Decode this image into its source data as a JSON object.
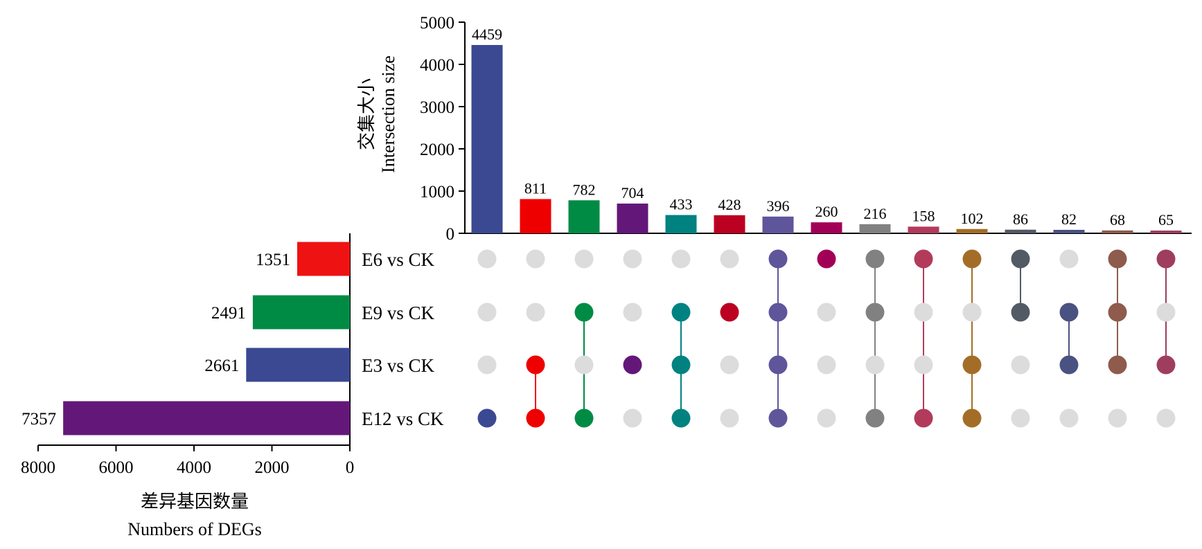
{
  "chart_data": {
    "type": "upset",
    "sets": [
      {
        "name": "E6 vs CK",
        "size": 1351,
        "color": "#ee1212"
      },
      {
        "name": "E9 vs CK",
        "size": 2491,
        "color": "#008b45"
      },
      {
        "name": "E3 vs CK",
        "size": 2661,
        "color": "#3b4992"
      },
      {
        "name": "E12 vs CK",
        "size": 7357,
        "color": "#631879"
      }
    ],
    "intersections": [
      {
        "size": 4459,
        "sets": [
          "E12 vs CK"
        ],
        "color": "#3b4992"
      },
      {
        "size": 811,
        "sets": [
          "E3 vs CK",
          "E12 vs CK"
        ],
        "color": "#ee0000"
      },
      {
        "size": 782,
        "sets": [
          "E9 vs CK",
          "E12 vs CK"
        ],
        "color": "#008b45"
      },
      {
        "size": 704,
        "sets": [
          "E3 vs CK"
        ],
        "color": "#631879"
      },
      {
        "size": 433,
        "sets": [
          "E9 vs CK",
          "E3 vs CK",
          "E12 vs CK"
        ],
        "color": "#008280"
      },
      {
        "size": 428,
        "sets": [
          "E9 vs CK"
        ],
        "color": "#bb0021"
      },
      {
        "size": 396,
        "sets": [
          "E6 vs CK",
          "E9 vs CK",
          "E3 vs CK",
          "E12 vs CK"
        ],
        "color": "#5f559b"
      },
      {
        "size": 260,
        "sets": [
          "E6 vs CK"
        ],
        "color": "#a20056"
      },
      {
        "size": 216,
        "sets": [
          "E6 vs CK",
          "E9 vs CK",
          "E12 vs CK"
        ],
        "color": "#808180"
      },
      {
        "size": 158,
        "sets": [
          "E6 vs CK",
          "E12 vs CK"
        ],
        "color": "#b23b5c"
      },
      {
        "size": 102,
        "sets": [
          "E6 vs CK",
          "E3 vs CK",
          "E12 vs CK"
        ],
        "color": "#a46d27"
      },
      {
        "size": 86,
        "sets": [
          "E6 vs CK",
          "E9 vs CK"
        ],
        "color": "#525a66"
      },
      {
        "size": 82,
        "sets": [
          "E9 vs CK",
          "E3 vs CK"
        ],
        "color": "#4a5281"
      },
      {
        "size": 68,
        "sets": [
          "E6 vs CK",
          "E9 vs CK",
          "E3 vs CK"
        ],
        "color": "#8e5b4c"
      },
      {
        "size": 65,
        "sets": [
          "E6 vs CK",
          "E3 vs CK"
        ],
        "color": "#9f3d5f"
      }
    ],
    "intersection_axis": {
      "label_cn": "交集大小",
      "label_en": "Intersection size",
      "ylim": [
        0,
        5000
      ],
      "ticks": [
        0,
        1000,
        2000,
        3000,
        4000,
        5000
      ]
    },
    "set_size_axis": {
      "label_cn": "差异基因数量",
      "label_en": "Numbers of DEGs",
      "xlim": [
        8000,
        0
      ],
      "ticks": [
        8000,
        6000,
        4000,
        2000,
        0
      ]
    },
    "inactive_dot_color": "#dcdcdc"
  }
}
